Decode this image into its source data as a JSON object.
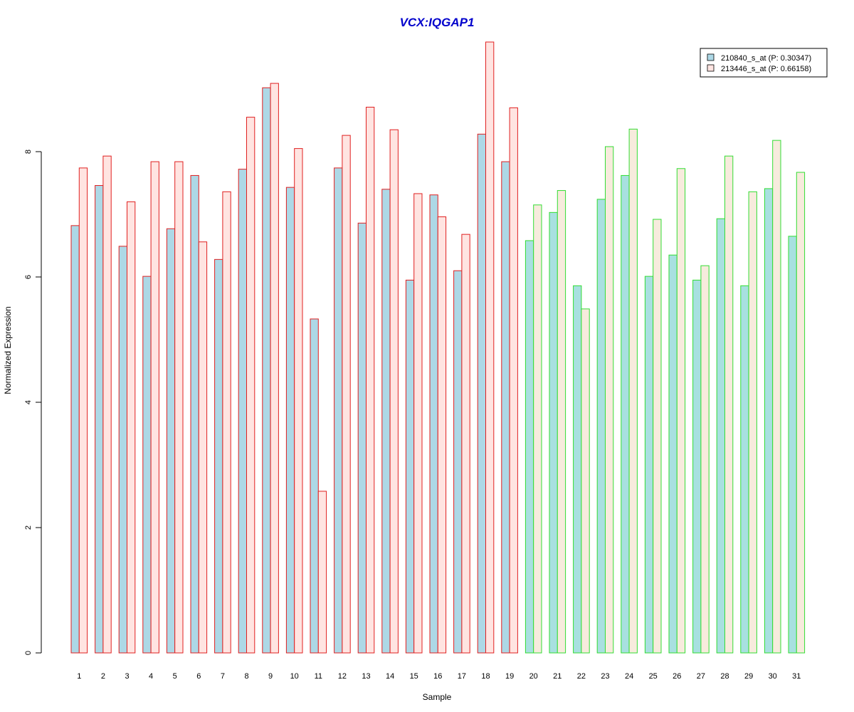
{
  "chart_data": {
    "type": "bar",
    "title": "VCX:IQGAP1",
    "xlabel": "Sample",
    "ylabel": "Normalized Expression",
    "ylim": [
      0,
      9.8
    ],
    "yticks": [
      0,
      2,
      4,
      6,
      8
    ],
    "categories": [
      "1",
      "2",
      "3",
      "4",
      "5",
      "6",
      "7",
      "8",
      "9",
      "10",
      "11",
      "12",
      "13",
      "14",
      "15",
      "16",
      "17",
      "18",
      "19",
      "20",
      "21",
      "22",
      "23",
      "24",
      "25",
      "26",
      "27",
      "28",
      "29",
      "30",
      "31"
    ],
    "group_split_after": 19,
    "series": [
      {
        "name": "210840_s_at (P: 0.30347)",
        "values": [
          6.82,
          7.46,
          6.49,
          6.01,
          6.77,
          7.62,
          6.28,
          7.72,
          9.02,
          7.43,
          5.33,
          7.74,
          6.86,
          7.4,
          5.95,
          7.31,
          6.1,
          8.28,
          7.84,
          6.58,
          7.03,
          5.86,
          7.24,
          7.62,
          6.01,
          6.35,
          5.95,
          6.93,
          5.86,
          7.41,
          6.65
        ],
        "fill_group1": "#add8e6",
        "fill_group2": "#a8e0e0"
      },
      {
        "name": "213446_s_at (P: 0.66158)",
        "values": [
          7.74,
          7.93,
          7.2,
          7.84,
          7.84,
          6.56,
          7.36,
          8.55,
          9.09,
          8.05,
          2.58,
          8.26,
          8.71,
          8.35,
          7.33,
          6.96,
          6.68,
          9.75,
          8.7,
          7.15,
          7.38,
          5.49,
          8.08,
          8.36,
          6.92,
          7.73,
          6.18,
          7.93,
          7.36,
          8.18,
          7.67
        ],
        "fill_group1": "#ffe4e1",
        "fill_group2": "#f7ebdd"
      }
    ],
    "border_group1": "#e02020",
    "border_group2": "#33dd33",
    "legend_position": "top-right"
  }
}
